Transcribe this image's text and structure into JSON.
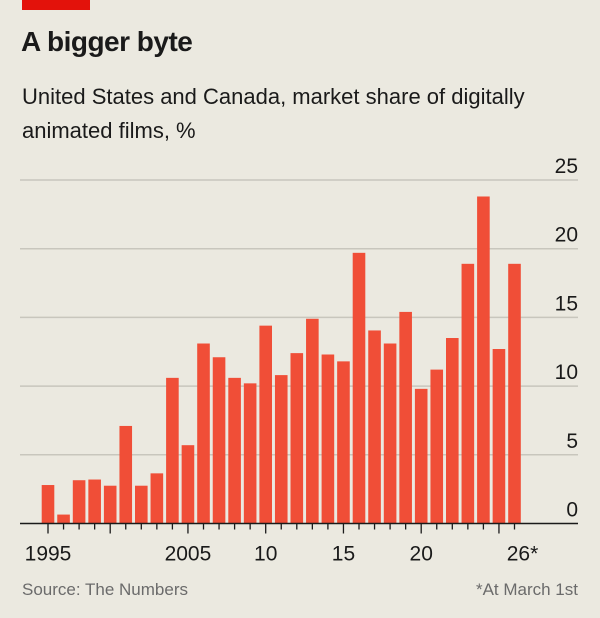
{
  "header": {
    "title": "A bigger byte",
    "subtitle": "United States and Canada, market share of digitally animated films, %"
  },
  "footer": {
    "source": "Source: The Numbers",
    "note": "*At March 1st"
  },
  "colors": {
    "bar": "#f04e37",
    "accent": "#e3120b",
    "background": "#ebe9e0"
  },
  "chart_data": {
    "type": "bar",
    "title": "A bigger byte",
    "subtitle": "United States and Canada, market share of digitally animated films, %",
    "categories": [
      "1996",
      "1997",
      "1998",
      "1999",
      "2000",
      "2001",
      "2002",
      "2003",
      "2004",
      "2005",
      "2006",
      "2007",
      "2008",
      "2009",
      "2010",
      "2011",
      "2012",
      "2013",
      "2014",
      "2015",
      "2016",
      "2017",
      "2018",
      "2019",
      "2020",
      "2021",
      "2022",
      "2023",
      "2024",
      "2025",
      "2026"
    ],
    "values": [
      2.8,
      0.65,
      3.15,
      3.2,
      2.75,
      7.1,
      2.75,
      3.65,
      10.6,
      5.7,
      13.1,
      12.1,
      10.6,
      10.2,
      14.4,
      10.8,
      12.4,
      14.9,
      12.3,
      11.8,
      19.7,
      14.05,
      13.1,
      15.4,
      9.8,
      11.2,
      13.5,
      18.9,
      23.8,
      12.7,
      18.9
    ],
    "xtick_labels": [
      "1995",
      "2005",
      "10",
      "15",
      "20",
      "26*"
    ],
    "yticks": [
      0,
      5,
      10,
      15,
      20,
      25
    ],
    "ylim": [
      0,
      25
    ],
    "grid": true,
    "yaxis_side": "right",
    "xlabel": "",
    "ylabel": ""
  }
}
